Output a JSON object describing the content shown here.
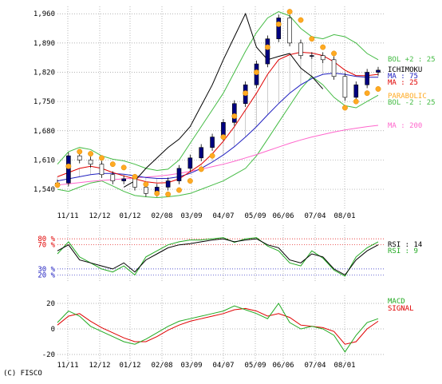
{
  "copyright": "(C) FISCO",
  "colors": {
    "ichimoku": "#000000",
    "ma25": "#e00000",
    "ma75": "#2020c0",
    "ma200": "#ff66cc",
    "bol": "#44bb44",
    "parabolic": "#ffaa22",
    "rsi14": "#000000",
    "rsi9": "#22aa22",
    "macd": "#22aa22",
    "signal": "#e00000",
    "up_candle": "#000080",
    "down_candle": "#ffffff"
  },
  "chart_data": [
    {
      "type": "line",
      "panel": "price",
      "y_ticks": [
        "1,960",
        "1,890",
        "1,820",
        "1,750",
        "1,680",
        "1,610",
        "1,540"
      ],
      "y_tick_values": [
        1960,
        1890,
        1820,
        1750,
        1680,
        1610,
        1540
      ],
      "ylim": [
        1500,
        1970
      ],
      "x_ticks": [
        "11/11",
        "12/12",
        "01/12",
        "02/08",
        "03/09",
        "04/07",
        "05/09",
        "06/06",
        "07/04",
        "08/01"
      ],
      "legend": [
        {
          "label": "ICHIMOKU",
          "color": "#000000"
        },
        {
          "label": "MA : 75",
          "color": "#2020c0"
        },
        {
          "label": "MA : 25",
          "color": "#e00000"
        },
        {
          "label": "BOL +2 : 25",
          "color": "#44bb44"
        },
        {
          "label": "PARABOLIC",
          "color": "#ffaa22"
        },
        {
          "label": "BOL -2 : 25",
          "color": "#44bb44"
        },
        {
          "label": "MA : 200",
          "color": "#ff66cc"
        }
      ],
      "close": [
        1555,
        1620,
        1610,
        1600,
        1575,
        1560,
        1565,
        1545,
        1530,
        1545,
        1560,
        1590,
        1615,
        1640,
        1665,
        1700,
        1745,
        1790,
        1840,
        1900,
        1950,
        1890,
        1860,
        1860,
        1850,
        1810,
        1760,
        1790,
        1820,
        1825
      ],
      "ichimoku_lagging": [
        1545,
        1560,
        1590,
        1615,
        1640,
        1660,
        1690,
        1740,
        1790,
        1850,
        1905,
        1960,
        1880,
        1850,
        1858,
        1865,
        1830,
        1810,
        1780
      ],
      "ma25": [
        1570,
        1580,
        1590,
        1595,
        1590,
        1580,
        1572,
        1565,
        1558,
        1555,
        1556,
        1565,
        1582,
        1600,
        1625,
        1655,
        1690,
        1730,
        1770,
        1815,
        1850,
        1862,
        1868,
        1866,
        1860,
        1845,
        1825,
        1812,
        1812,
        1815
      ],
      "ma75": [
        1560,
        1565,
        1570,
        1575,
        1578,
        1578,
        1576,
        1572,
        1568,
        1566,
        1566,
        1570,
        1578,
        1590,
        1605,
        1622,
        1642,
        1665,
        1690,
        1718,
        1745,
        1770,
        1790,
        1805,
        1815,
        1818,
        1815,
        1810,
        1808,
        1808
      ],
      "ma200": [
        1550,
        1553,
        1556,
        1559,
        1561,
        1563,
        1565,
        1567,
        1569,
        1571,
        1574,
        1578,
        1583,
        1588,
        1594,
        1600,
        1607,
        1615,
        1623,
        1632,
        1641,
        1650,
        1658,
        1665,
        1671,
        1677,
        1682,
        1686,
        1690,
        1693
      ],
      "bol_upper": [
        1600,
        1630,
        1640,
        1635,
        1620,
        1612,
        1608,
        1600,
        1590,
        1585,
        1588,
        1610,
        1650,
        1690,
        1730,
        1770,
        1820,
        1870,
        1915,
        1950,
        1965,
        1955,
        1925,
        1905,
        1900,
        1910,
        1905,
        1890,
        1865,
        1850
      ],
      "bol_lower": [
        1540,
        1535,
        1545,
        1555,
        1560,
        1548,
        1535,
        1525,
        1522,
        1520,
        1522,
        1525,
        1530,
        1540,
        1550,
        1560,
        1575,
        1590,
        1620,
        1660,
        1700,
        1740,
        1780,
        1810,
        1790,
        1760,
        1740,
        1735,
        1750,
        1765
      ],
      "parabolic": [
        1550,
        1595,
        1630,
        1625,
        1615,
        1600,
        1592,
        1570,
        1552,
        1530,
        1528,
        1538,
        1560,
        1588,
        1620,
        1665,
        1715,
        1770,
        1820,
        1880,
        1935,
        1965,
        1945,
        1900,
        1880,
        1865,
        1735,
        1750,
        1770,
        1780
      ]
    },
    {
      "type": "line",
      "panel": "rsi",
      "y_ticks": [
        "80 %",
        "70 %",
        "30 %",
        "20 %"
      ],
      "y_tick_values": [
        80,
        70,
        30,
        20
      ],
      "ylim": [
        10,
        100
      ],
      "legend": [
        {
          "label": "RSI : 14",
          "color": "#000000"
        },
        {
          "label": "RSI : 9",
          "color": "#22aa22"
        }
      ],
      "rsi14": [
        60,
        70,
        45,
        40,
        35,
        30,
        40,
        25,
        45,
        55,
        65,
        70,
        72,
        75,
        78,
        80,
        75,
        78,
        80,
        70,
        65,
        45,
        40,
        55,
        50,
        30,
        20,
        45,
        60,
        70
      ],
      "rsi9": [
        55,
        75,
        50,
        40,
        30,
        25,
        35,
        20,
        50,
        60,
        70,
        75,
        78,
        78,
        80,
        82,
        74,
        80,
        82,
        68,
        60,
        40,
        35,
        60,
        48,
        28,
        18,
        50,
        65,
        75
      ]
    },
    {
      "type": "line",
      "panel": "macd",
      "y_ticks": [
        "20",
        "0",
        "-20"
      ],
      "y_tick_values": [
        20,
        0,
        -20
      ],
      "ylim": [
        -25,
        25
      ],
      "legend": [
        {
          "label": "MACD",
          "color": "#22aa22"
        },
        {
          "label": "SIGNAL",
          "color": "#e00000"
        }
      ],
      "macd": [
        5,
        14,
        10,
        2,
        -2,
        -6,
        -10,
        -12,
        -8,
        -3,
        2,
        6,
        8,
        10,
        12,
        14,
        18,
        15,
        12,
        8,
        20,
        5,
        0,
        2,
        0,
        -5,
        -18,
        -5,
        5,
        8
      ],
      "signal": [
        3,
        10,
        12,
        6,
        1,
        -3,
        -7,
        -10,
        -10,
        -6,
        -1,
        3,
        6,
        8,
        10,
        12,
        15,
        16,
        14,
        10,
        12,
        9,
        3,
        2,
        1,
        -2,
        -12,
        -10,
        0,
        6
      ]
    }
  ]
}
